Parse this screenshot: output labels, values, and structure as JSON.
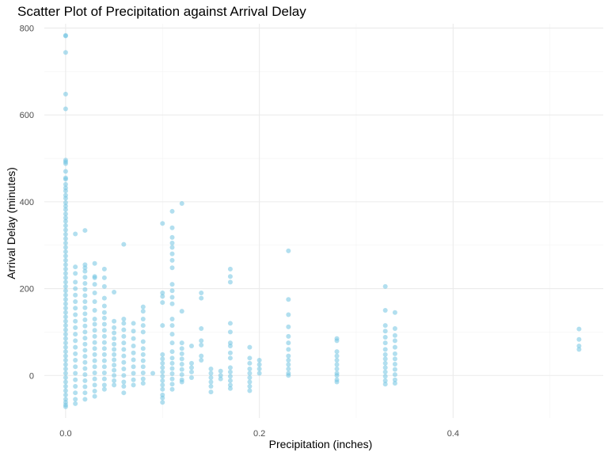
{
  "chart_data": {
    "type": "scatter",
    "title": "Scatter Plot of Precipitation against Arrival Delay",
    "xlabel": "Precipitation (inches)",
    "ylabel": "Arrival Delay (minutes)",
    "xlim": [
      -0.022,
      0.555
    ],
    "ylim": [
      -98,
      810
    ],
    "x_ticks": [
      0.0,
      0.2,
      0.4
    ],
    "x_tick_labels": [
      "0.0",
      "0.2",
      "0.4"
    ],
    "y_ticks": [
      0,
      200,
      400,
      600,
      800
    ],
    "y_tick_labels": [
      "0",
      "200",
      "400",
      "600",
      "800"
    ],
    "grid": true,
    "legend": "none",
    "point_color": "#73C4E2",
    "point_opacity": 0.55,
    "points": [
      [
        0,
        783
      ],
      [
        0,
        782
      ],
      [
        0,
        744
      ],
      [
        0,
        648
      ],
      [
        0,
        614
      ],
      [
        0,
        496
      ],
      [
        0,
        492
      ],
      [
        0,
        488
      ],
      [
        0,
        470
      ],
      [
        0,
        455
      ],
      [
        0,
        452
      ],
      [
        0,
        440
      ],
      [
        0,
        432
      ],
      [
        0,
        425
      ],
      [
        0,
        415
      ],
      [
        0,
        408
      ],
      [
        0,
        398
      ],
      [
        0,
        390
      ],
      [
        0,
        382
      ],
      [
        0,
        372
      ],
      [
        0,
        363
      ],
      [
        0,
        355
      ],
      [
        0,
        345
      ],
      [
        0,
        335
      ],
      [
        0,
        325
      ],
      [
        0,
        315
      ],
      [
        0,
        305
      ],
      [
        0,
        295
      ],
      [
        0,
        285
      ],
      [
        0,
        275
      ],
      [
        0,
        265
      ],
      [
        0,
        255
      ],
      [
        0,
        245
      ],
      [
        0,
        235
      ],
      [
        0,
        225
      ],
      [
        0,
        215
      ],
      [
        0,
        205
      ],
      [
        0,
        195
      ],
      [
        0,
        185
      ],
      [
        0,
        175
      ],
      [
        0,
        165
      ],
      [
        0,
        155
      ],
      [
        0,
        145
      ],
      [
        0,
        135
      ],
      [
        0,
        125
      ],
      [
        0,
        115
      ],
      [
        0,
        105
      ],
      [
        0,
        95
      ],
      [
        0,
        85
      ],
      [
        0,
        75
      ],
      [
        0,
        65
      ],
      [
        0,
        55
      ],
      [
        0,
        45
      ],
      [
        0,
        35
      ],
      [
        0,
        25
      ],
      [
        0,
        15
      ],
      [
        0,
        5
      ],
      [
        0,
        -5
      ],
      [
        0,
        -15
      ],
      [
        0,
        -25
      ],
      [
        0,
        -35
      ],
      [
        0,
        -45
      ],
      [
        0,
        -55
      ],
      [
        0,
        -62
      ],
      [
        0,
        -68
      ],
      [
        0,
        -72
      ],
      [
        0.01,
        326
      ],
      [
        0.01,
        250
      ],
      [
        0.01,
        235
      ],
      [
        0.01,
        215
      ],
      [
        0.01,
        200
      ],
      [
        0.01,
        185
      ],
      [
        0.01,
        170
      ],
      [
        0.01,
        155
      ],
      [
        0.01,
        140
      ],
      [
        0.01,
        125
      ],
      [
        0.01,
        110
      ],
      [
        0.01,
        95
      ],
      [
        0.01,
        80
      ],
      [
        0.01,
        65
      ],
      [
        0.01,
        50
      ],
      [
        0.01,
        35
      ],
      [
        0.01,
        20
      ],
      [
        0.01,
        5
      ],
      [
        0.01,
        -10
      ],
      [
        0.01,
        -25
      ],
      [
        0.01,
        -40
      ],
      [
        0.01,
        -55
      ],
      [
        0.01,
        -65
      ],
      [
        0.02,
        334
      ],
      [
        0.02,
        255
      ],
      [
        0.02,
        248
      ],
      [
        0.02,
        240
      ],
      [
        0.02,
        226
      ],
      [
        0.02,
        212
      ],
      [
        0.02,
        198
      ],
      [
        0.02,
        184
      ],
      [
        0.02,
        170
      ],
      [
        0.02,
        156
      ],
      [
        0.02,
        142
      ],
      [
        0.02,
        128
      ],
      [
        0.02,
        114
      ],
      [
        0.02,
        100
      ],
      [
        0.02,
        86
      ],
      [
        0.02,
        72
      ],
      [
        0.02,
        58
      ],
      [
        0.02,
        44
      ],
      [
        0.02,
        30
      ],
      [
        0.02,
        16
      ],
      [
        0.02,
        2
      ],
      [
        0.02,
        -12
      ],
      [
        0.02,
        -26
      ],
      [
        0.02,
        -40
      ],
      [
        0.02,
        -55
      ],
      [
        0.03,
        258
      ],
      [
        0.03,
        228
      ],
      [
        0.03,
        225
      ],
      [
        0.03,
        210
      ],
      [
        0.03,
        190
      ],
      [
        0.03,
        170
      ],
      [
        0.03,
        150
      ],
      [
        0.03,
        130
      ],
      [
        0.03,
        118
      ],
      [
        0.03,
        104
      ],
      [
        0.03,
        90
      ],
      [
        0.03,
        76
      ],
      [
        0.03,
        62
      ],
      [
        0.03,
        48
      ],
      [
        0.03,
        34
      ],
      [
        0.03,
        20
      ],
      [
        0.03,
        6
      ],
      [
        0.03,
        -8
      ],
      [
        0.03,
        -22
      ],
      [
        0.03,
        -36
      ],
      [
        0.03,
        -48
      ],
      [
        0.04,
        245
      ],
      [
        0.04,
        225
      ],
      [
        0.04,
        205
      ],
      [
        0.04,
        178
      ],
      [
        0.04,
        160
      ],
      [
        0.04,
        145
      ],
      [
        0.04,
        132
      ],
      [
        0.04,
        118
      ],
      [
        0.04,
        104
      ],
      [
        0.04,
        90
      ],
      [
        0.04,
        76
      ],
      [
        0.04,
        62
      ],
      [
        0.04,
        48
      ],
      [
        0.04,
        34
      ],
      [
        0.04,
        20
      ],
      [
        0.04,
        6
      ],
      [
        0.04,
        -8
      ],
      [
        0.04,
        -22
      ],
      [
        0.04,
        -32
      ],
      [
        0.05,
        192
      ],
      [
        0.05,
        125
      ],
      [
        0.05,
        110
      ],
      [
        0.05,
        98
      ],
      [
        0.05,
        85
      ],
      [
        0.05,
        72
      ],
      [
        0.05,
        60
      ],
      [
        0.05,
        48
      ],
      [
        0.05,
        36
      ],
      [
        0.05,
        24
      ],
      [
        0.05,
        12
      ],
      [
        0.05,
        0
      ],
      [
        0.05,
        -12
      ],
      [
        0.05,
        -22
      ],
      [
        0.06,
        302
      ],
      [
        0.06,
        130
      ],
      [
        0.06,
        120
      ],
      [
        0.06,
        105
      ],
      [
        0.06,
        90
      ],
      [
        0.06,
        75
      ],
      [
        0.06,
        60
      ],
      [
        0.06,
        45
      ],
      [
        0.06,
        30
      ],
      [
        0.06,
        15
      ],
      [
        0.06,
        0
      ],
      [
        0.06,
        -15
      ],
      [
        0.06,
        -25
      ],
      [
        0.06,
        -40
      ],
      [
        0.07,
        120
      ],
      [
        0.07,
        102
      ],
      [
        0.07,
        85
      ],
      [
        0.07,
        68
      ],
      [
        0.07,
        52
      ],
      [
        0.07,
        36
      ],
      [
        0.07,
        20
      ],
      [
        0.07,
        5
      ],
      [
        0.07,
        -10
      ],
      [
        0.07,
        -22
      ],
      [
        0.08,
        158
      ],
      [
        0.08,
        148
      ],
      [
        0.08,
        130
      ],
      [
        0.08,
        115
      ],
      [
        0.08,
        100
      ],
      [
        0.08,
        78
      ],
      [
        0.08,
        62
      ],
      [
        0.08,
        48
      ],
      [
        0.08,
        34
      ],
      [
        0.08,
        20
      ],
      [
        0.08,
        6
      ],
      [
        0.08,
        -8
      ],
      [
        0.08,
        -18
      ],
      [
        0.09,
        5
      ],
      [
        0.1,
        350
      ],
      [
        0.1,
        190
      ],
      [
        0.1,
        182
      ],
      [
        0.1,
        168
      ],
      [
        0.1,
        115
      ],
      [
        0.1,
        48
      ],
      [
        0.1,
        38
      ],
      [
        0.1,
        28
      ],
      [
        0.1,
        18
      ],
      [
        0.1,
        8
      ],
      [
        0.1,
        -2
      ],
      [
        0.1,
        -12
      ],
      [
        0.1,
        -22
      ],
      [
        0.1,
        -32
      ],
      [
        0.1,
        -45
      ],
      [
        0.1,
        -52
      ],
      [
        0.1,
        -62
      ],
      [
        0.11,
        378
      ],
      [
        0.11,
        340
      ],
      [
        0.11,
        318
      ],
      [
        0.11,
        305
      ],
      [
        0.11,
        295
      ],
      [
        0.11,
        280
      ],
      [
        0.11,
        265
      ],
      [
        0.11,
        248
      ],
      [
        0.11,
        210
      ],
      [
        0.11,
        195
      ],
      [
        0.11,
        180
      ],
      [
        0.11,
        165
      ],
      [
        0.11,
        130
      ],
      [
        0.11,
        115
      ],
      [
        0.11,
        95
      ],
      [
        0.11,
        75
      ],
      [
        0.11,
        55
      ],
      [
        0.11,
        40
      ],
      [
        0.11,
        28
      ],
      [
        0.11,
        16
      ],
      [
        0.11,
        4
      ],
      [
        0.11,
        -8
      ],
      [
        0.11,
        -20
      ],
      [
        0.11,
        -32
      ],
      [
        0.12,
        396
      ],
      [
        0.12,
        148
      ],
      [
        0.12,
        75
      ],
      [
        0.12,
        62
      ],
      [
        0.12,
        50
      ],
      [
        0.12,
        38
      ],
      [
        0.12,
        26
      ],
      [
        0.12,
        14
      ],
      [
        0.12,
        2
      ],
      [
        0.12,
        -10
      ],
      [
        0.12,
        -15
      ],
      [
        0.13,
        68
      ],
      [
        0.13,
        28
      ],
      [
        0.13,
        18
      ],
      [
        0.13,
        8
      ],
      [
        0.13,
        -5
      ],
      [
        0.14,
        190
      ],
      [
        0.14,
        178
      ],
      [
        0.14,
        108
      ],
      [
        0.14,
        80
      ],
      [
        0.14,
        70
      ],
      [
        0.14,
        45
      ],
      [
        0.14,
        35
      ],
      [
        0.15,
        15
      ],
      [
        0.15,
        5
      ],
      [
        0.15,
        -5
      ],
      [
        0.15,
        -15
      ],
      [
        0.15,
        -25
      ],
      [
        0.15,
        -38
      ],
      [
        0.16,
        10
      ],
      [
        0.16,
        0
      ],
      [
        0.16,
        -8
      ],
      [
        0.17,
        245
      ],
      [
        0.17,
        228
      ],
      [
        0.17,
        215
      ],
      [
        0.17,
        120
      ],
      [
        0.17,
        100
      ],
      [
        0.17,
        75
      ],
      [
        0.17,
        68
      ],
      [
        0.17,
        52
      ],
      [
        0.17,
        40
      ],
      [
        0.17,
        18
      ],
      [
        0.17,
        8
      ],
      [
        0.17,
        -2
      ],
      [
        0.17,
        -12
      ],
      [
        0.17,
        -22
      ],
      [
        0.17,
        -30
      ],
      [
        0.19,
        65
      ],
      [
        0.19,
        40
      ],
      [
        0.19,
        28
      ],
      [
        0.19,
        15
      ],
      [
        0.19,
        5
      ],
      [
        0.19,
        -5
      ],
      [
        0.19,
        -15
      ],
      [
        0.19,
        -25
      ],
      [
        0.19,
        -35
      ],
      [
        0.2,
        35
      ],
      [
        0.2,
        25
      ],
      [
        0.2,
        15
      ],
      [
        0.2,
        5
      ],
      [
        0.23,
        287
      ],
      [
        0.23,
        175
      ],
      [
        0.23,
        140
      ],
      [
        0.23,
        112
      ],
      [
        0.23,
        90
      ],
      [
        0.23,
        75
      ],
      [
        0.23,
        60
      ],
      [
        0.23,
        45
      ],
      [
        0.23,
        35
      ],
      [
        0.23,
        25
      ],
      [
        0.23,
        15
      ],
      [
        0.23,
        5
      ],
      [
        0.23,
        0
      ],
      [
        0.28,
        85
      ],
      [
        0.28,
        80
      ],
      [
        0.28,
        55
      ],
      [
        0.28,
        45
      ],
      [
        0.28,
        35
      ],
      [
        0.28,
        25
      ],
      [
        0.28,
        15
      ],
      [
        0.28,
        5
      ],
      [
        0.28,
        0
      ],
      [
        0.28,
        -10
      ],
      [
        0.28,
        -15
      ],
      [
        0.33,
        205
      ],
      [
        0.33,
        150
      ],
      [
        0.33,
        115
      ],
      [
        0.33,
        102
      ],
      [
        0.33,
        88
      ],
      [
        0.33,
        75
      ],
      [
        0.33,
        60
      ],
      [
        0.33,
        48
      ],
      [
        0.33,
        38
      ],
      [
        0.33,
        28
      ],
      [
        0.33,
        18
      ],
      [
        0.33,
        8
      ],
      [
        0.33,
        -2
      ],
      [
        0.33,
        -12
      ],
      [
        0.33,
        -20
      ],
      [
        0.34,
        145
      ],
      [
        0.34,
        108
      ],
      [
        0.34,
        92
      ],
      [
        0.34,
        80
      ],
      [
        0.34,
        65
      ],
      [
        0.34,
        50
      ],
      [
        0.34,
        38
      ],
      [
        0.34,
        26
      ],
      [
        0.34,
        14
      ],
      [
        0.34,
        2
      ],
      [
        0.34,
        -10
      ],
      [
        0.34,
        -18
      ],
      [
        0.53,
        107
      ],
      [
        0.53,
        83
      ],
      [
        0.53,
        68
      ],
      [
        0.53,
        60
      ]
    ]
  }
}
